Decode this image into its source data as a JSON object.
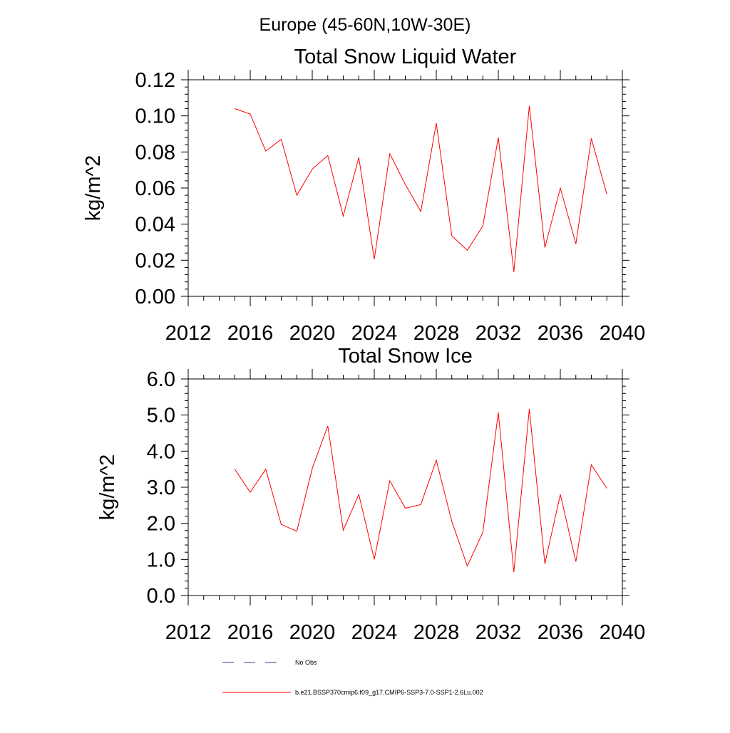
{
  "main_title": "Europe (45-60N,10W-30E)",
  "legend": {
    "items": [
      {
        "label": "No Obs",
        "color": "#3b3b8f",
        "style": "dashed"
      },
      {
        "label": "b.e21.BSSP370cmip6.f09_g17.CMIP6-SSP3-7.0-SSP1-2.6Lu.002",
        "color": "#ff0000",
        "style": "solid"
      }
    ]
  },
  "chart_data": [
    {
      "type": "line",
      "title": "Total Snow Liquid Water",
      "xlabel": "",
      "ylabel": "kg/m^2",
      "xlim": [
        2012,
        2040
      ],
      "ylim": [
        0,
        0.12
      ],
      "xticks": [
        2012,
        2016,
        2020,
        2024,
        2028,
        2032,
        2036,
        2040
      ],
      "yticks": [
        0.0,
        0.02,
        0.04,
        0.06,
        0.08,
        0.1,
        0.12
      ],
      "ytick_labels": [
        "0.00",
        "0.02",
        "0.04",
        "0.06",
        "0.08",
        "0.10",
        "0.12"
      ],
      "grid": false,
      "x": [
        2015,
        2016,
        2017,
        2018,
        2019,
        2020,
        2021,
        2022,
        2023,
        2024,
        2025,
        2026,
        2027,
        2028,
        2029,
        2030,
        2031,
        2032,
        2033,
        2034,
        2035,
        2036,
        2037,
        2038,
        2039
      ],
      "series": [
        {
          "color": "#ff0000",
          "values": [
            0.104,
            0.101,
            0.0805,
            0.087,
            0.056,
            0.0705,
            0.078,
            0.0445,
            0.077,
            0.0205,
            0.079,
            0.062,
            0.047,
            0.096,
            0.0335,
            0.0255,
            0.039,
            0.088,
            0.0135,
            0.1055,
            0.027,
            0.06,
            0.029,
            0.0875,
            0.0565
          ]
        }
      ]
    },
    {
      "type": "line",
      "title": "Total Snow Ice",
      "xlabel": "",
      "ylabel": "kg/m^2",
      "xlim": [
        2012,
        2040
      ],
      "ylim": [
        0,
        6
      ],
      "xticks": [
        2012,
        2016,
        2020,
        2024,
        2028,
        2032,
        2036,
        2040
      ],
      "yticks": [
        0,
        1,
        2,
        3,
        4,
        5,
        6
      ],
      "ytick_labels": [
        "0.0",
        "1.0",
        "2.0",
        "3.0",
        "4.0",
        "5.0",
        "6.0"
      ],
      "grid": false,
      "x": [
        2015,
        2016,
        2017,
        2018,
        2019,
        2020,
        2021,
        2022,
        2023,
        2024,
        2025,
        2026,
        2027,
        2028,
        2029,
        2030,
        2031,
        2032,
        2033,
        2034,
        2035,
        2036,
        2037,
        2038,
        2039
      ],
      "series": [
        {
          "color": "#ff0000",
          "values": [
            3.5,
            2.86,
            3.5,
            1.97,
            1.78,
            3.52,
            4.7,
            1.81,
            2.8,
            1.0,
            3.18,
            2.42,
            2.52,
            3.75,
            2.05,
            0.82,
            1.75,
            5.07,
            0.65,
            5.17,
            0.88,
            2.8,
            0.94,
            3.62,
            2.97
          ]
        }
      ]
    }
  ]
}
